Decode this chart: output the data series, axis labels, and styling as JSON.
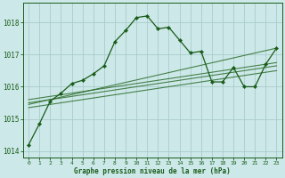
{
  "title": "Graphe pression niveau de la mer (hPa)",
  "bg_color": "#cce8e8",
  "grid_color": "#aacccc",
  "line_color_main": "#1a5c1a",
  "line_color_trend": "#2d6e2d",
  "xlim": [
    -0.5,
    23.5
  ],
  "ylim": [
    1013.8,
    1018.6
  ],
  "yticks": [
    1014,
    1015,
    1016,
    1017,
    1018
  ],
  "xticks": [
    0,
    1,
    2,
    3,
    4,
    5,
    6,
    7,
    8,
    9,
    10,
    11,
    12,
    13,
    14,
    15,
    16,
    17,
    18,
    19,
    20,
    21,
    22,
    23
  ],
  "main_x": [
    0,
    1,
    2,
    3,
    4,
    5,
    6,
    7,
    8,
    9,
    10,
    11,
    12,
    13,
    14,
    15,
    16,
    17,
    18,
    19,
    20,
    21,
    22,
    23
  ],
  "main_y": [
    1014.2,
    1014.85,
    1015.55,
    1015.8,
    1016.1,
    1016.2,
    1016.4,
    1016.65,
    1017.4,
    1017.75,
    1018.15,
    1018.2,
    1017.8,
    1017.85,
    1017.45,
    1017.05,
    1017.1,
    1016.15,
    1016.15,
    1016.6,
    1016.0,
    1016.0,
    1016.7,
    1017.2
  ],
  "trend_lines": [
    {
      "x": [
        0,
        23
      ],
      "y": [
        1015.35,
        1016.5
      ]
    },
    {
      "x": [
        0,
        23
      ],
      "y": [
        1015.5,
        1016.65
      ]
    },
    {
      "x": [
        0,
        23
      ],
      "y": [
        1015.6,
        1016.75
      ]
    },
    {
      "x": [
        0,
        23
      ],
      "y": [
        1015.45,
        1017.2
      ]
    }
  ]
}
